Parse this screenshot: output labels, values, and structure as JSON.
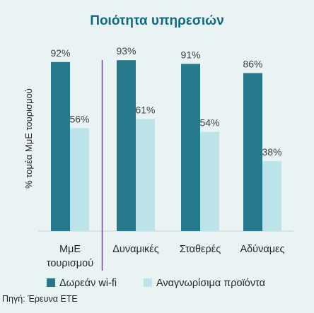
{
  "chart_data": {
    "type": "bar",
    "title": "Ποιότητα υπηρεσιών",
    "ylabel": "% τομέα ΜμΕ τουρισμού",
    "xlabel": "",
    "categories": [
      "ΜμΕ τουρισμού",
      "Δυναμικές",
      "Σταθερές",
      "Αδύναμες"
    ],
    "category_lines": [
      [
        "ΜμΕ",
        "τουρισμού"
      ],
      [
        "Δυναμικές"
      ],
      [
        "Σταθερές"
      ],
      [
        "Αδύναμες"
      ]
    ],
    "series": [
      {
        "name": "Δωρεάν wi-fi",
        "values": [
          92,
          93,
          91,
          86
        ],
        "labels": [
          "92%",
          "93%",
          "91%",
          "86%"
        ],
        "color": "#25798a"
      },
      {
        "name": "Αναγνωρίσιμα προϊόντα",
        "values": [
          56,
          61,
          54,
          38
        ],
        "labels": [
          "56%",
          "61%",
          "54%",
          "38%"
        ],
        "color": "#bde3ea"
      }
    ],
    "ylim": [
      0,
      100
    ],
    "grid": false,
    "legend": "bottom",
    "separator_after_category": 0,
    "source": "Πηγή: Έρευνα ΕΤΕ"
  },
  "colors": {
    "background": "#e9f3f3",
    "title": "#0d6b7e",
    "separator": "#6b4a86",
    "axis": "#cfcfcf"
  }
}
